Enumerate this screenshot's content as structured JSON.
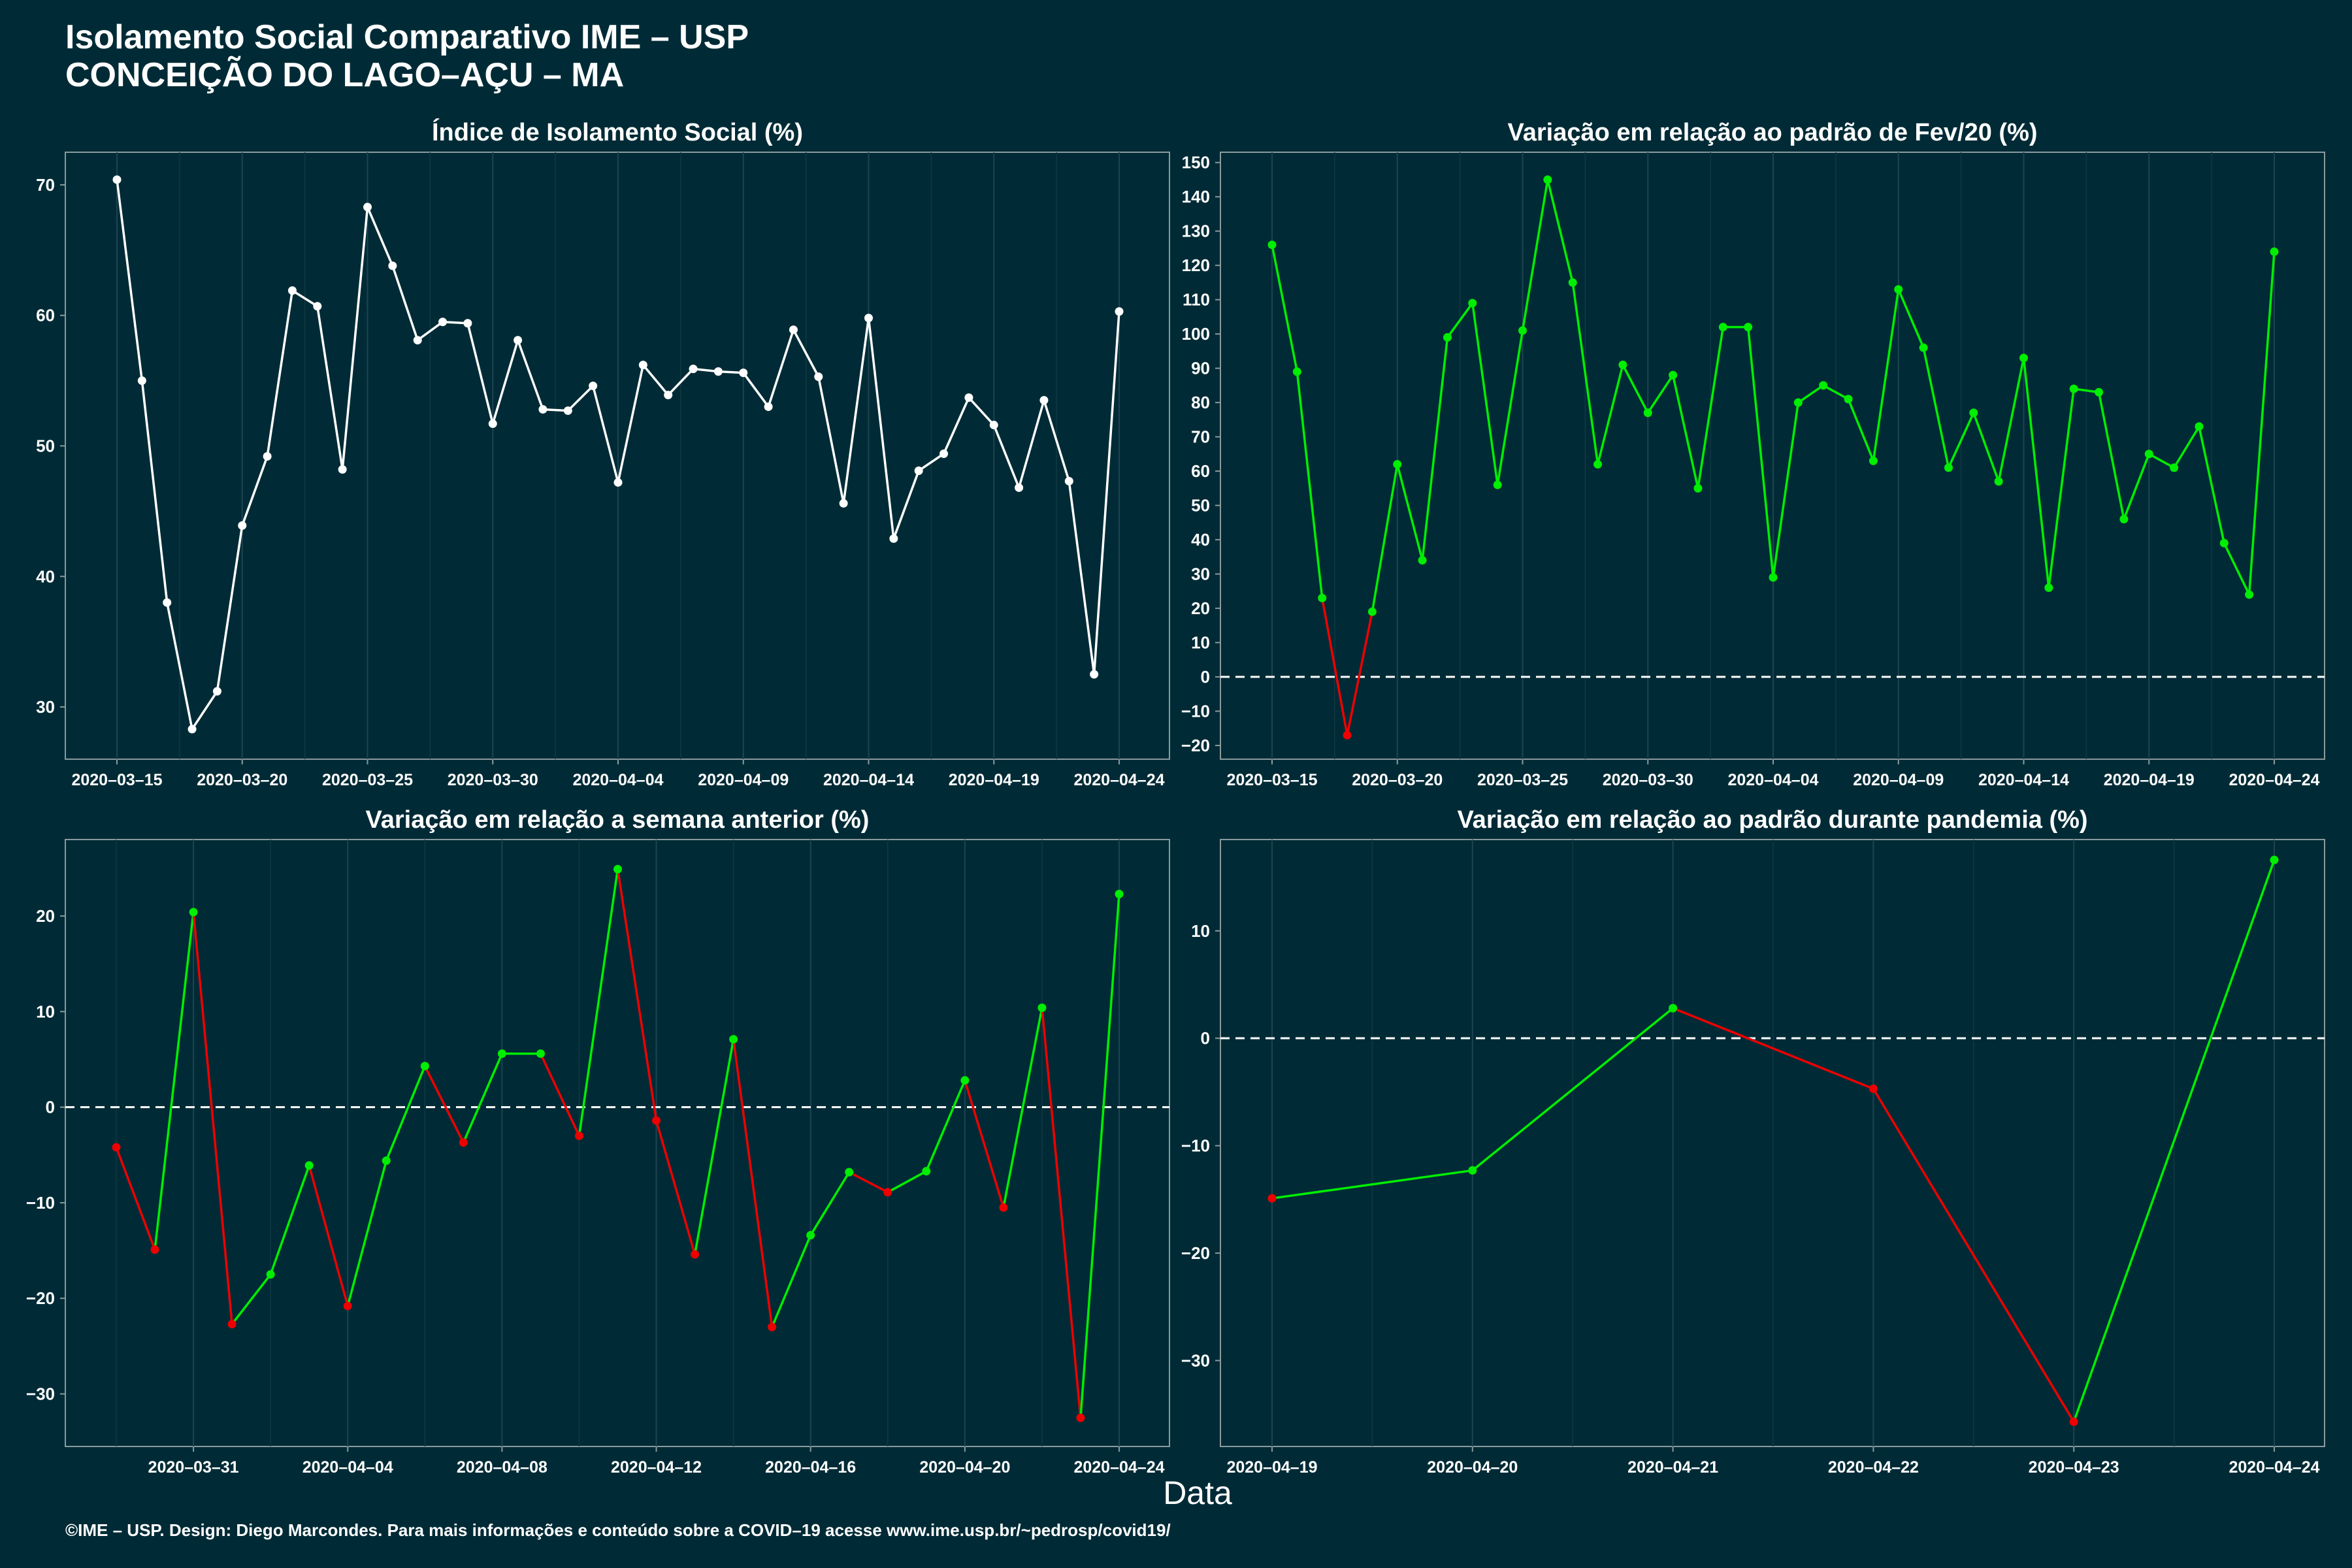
{
  "header": {
    "title": "Isolamento Social Comparativo IME – USP",
    "subtitle": "CONCEIÇÃO DO LAGO–AÇU – MA"
  },
  "xlabel": "Data",
  "footer": "©IME – USP. Design: Diego Marcondes. Para mais informações e conteúdo sobre a COVID–19 acesse www.ime.usp.br/~pedrosp/covid19/",
  "colors": {
    "background": "#002b36",
    "white": "#ffffff",
    "green": "#00ee00",
    "red": "#ee0000"
  },
  "chart_data": [
    {
      "type": "line",
      "title": "Índice de Isolamento Social (%)",
      "start_date": "2020-03-15",
      "x_ticks": [
        "2020–03–15",
        "2020–03–20",
        "2020–03–25",
        "2020–03–30",
        "2020–04–04",
        "2020–04–09",
        "2020–04–14",
        "2020–04–19",
        "2020–04–24"
      ],
      "y_ticks": [
        30,
        40,
        50,
        60,
        70
      ],
      "ylim": [
        26,
        72.5
      ],
      "color_mode": "white",
      "values": [
        70.4,
        55.0,
        38.0,
        28.3,
        31.2,
        43.9,
        49.2,
        61.9,
        60.7,
        48.2,
        68.3,
        63.8,
        58.1,
        59.5,
        59.4,
        51.7,
        58.1,
        52.8,
        52.7,
        54.6,
        47.2,
        56.2,
        53.9,
        55.9,
        55.7,
        55.6,
        53.0,
        58.9,
        55.3,
        45.6,
        59.8,
        42.9,
        48.1,
        49.4,
        53.7,
        51.6,
        46.8,
        53.5,
        47.3,
        32.5,
        60.3
      ]
    },
    {
      "type": "line",
      "title": "Variação em relação ao padrão de Fev/20 (%)",
      "start_date": "2020-03-15",
      "x_ticks": [
        "2020–03–15",
        "2020–03–20",
        "2020–03–25",
        "2020–03–30",
        "2020–04–04",
        "2020–04–09",
        "2020–04–14",
        "2020–04–19",
        "2020–04–24"
      ],
      "y_ticks": [
        -20,
        -10,
        0,
        10,
        20,
        30,
        40,
        50,
        60,
        70,
        80,
        90,
        100,
        110,
        120,
        130,
        140,
        150
      ],
      "ylim": [
        -24,
        153
      ],
      "color_mode": "sign",
      "zero_line": true,
      "values": [
        126,
        89,
        23,
        -17,
        19,
        62,
        34,
        99,
        109,
        56,
        101,
        145,
        115,
        62,
        91,
        77,
        88,
        55,
        102,
        102,
        29,
        80,
        85,
        81,
        63,
        113,
        96,
        61,
        77,
        57,
        93,
        26,
        84,
        83,
        46,
        65,
        61,
        73,
        39,
        24,
        124
      ]
    },
    {
      "type": "line",
      "title": "Variação em relação a semana anterior (%)",
      "start_date": "2020-03-29",
      "x_ticks": [
        "2020–03–31",
        "2020–04–04",
        "2020–04–08",
        "2020–04–12",
        "2020–04–16",
        "2020–04–20",
        "2020–04–24"
      ],
      "y_ticks": [
        -30,
        -20,
        -10,
        0,
        10,
        20
      ],
      "ylim": [
        -35.5,
        28
      ],
      "color_mode": "change",
      "zero_line": true,
      "values": [
        -4.2,
        -14.9,
        20.4,
        -22.7,
        -17.5,
        -6.1,
        -20.8,
        -5.6,
        4.3,
        -3.7,
        5.6,
        5.6,
        -3.0,
        24.9,
        -1.4,
        -15.4,
        7.1,
        -23.0,
        -13.4,
        -6.8,
        -8.9,
        -6.7,
        2.8,
        -10.5,
        10.4,
        -32.5,
        22.3
      ]
    },
    {
      "type": "line",
      "title": "Variação em relação ao padrão durante pandemia (%)",
      "start_date": "2020-04-19",
      "x_ticks": [
        "2020–04–19",
        "2020–04–20",
        "2020–04–21",
        "2020–04–22",
        "2020–04–23",
        "2020–04–24"
      ],
      "y_ticks": [
        -30,
        -20,
        -10,
        0,
        10
      ],
      "ylim": [
        -38,
        18.5
      ],
      "color_mode": "change",
      "zero_line": true,
      "values": [
        -14.9,
        -12.3,
        2.8,
        -4.7,
        -35.7,
        16.6
      ]
    }
  ]
}
